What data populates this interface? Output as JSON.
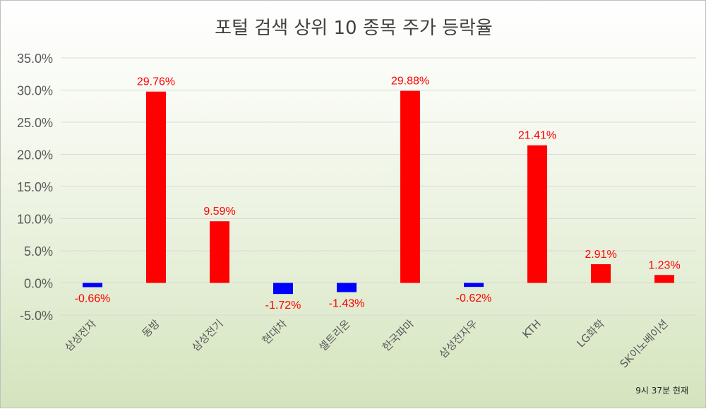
{
  "chart_data": {
    "type": "bar",
    "title": "포털 검색 상위 10 종목 주가 등락율",
    "categories": [
      "삼성전자",
      "동방",
      "삼성전기",
      "현대차",
      "셀트리온",
      "한국파마",
      "삼성전자우",
      "KTH",
      "LG화학",
      "SK이노베이션"
    ],
    "values": [
      -0.66,
      29.76,
      9.59,
      -1.72,
      -1.43,
      29.88,
      -0.62,
      21.41,
      2.91,
      1.23
    ],
    "data_labels": [
      "-0.66%",
      "29.76%",
      "9.59%",
      "-1.72%",
      "-1.43%",
      "29.88%",
      "-0.62%",
      "21.41%",
      "2.91%",
      "1.23%"
    ],
    "y_ticks": [
      35,
      30,
      25,
      20,
      15,
      10,
      5,
      0,
      -5
    ],
    "y_tick_labels": [
      "35.0%",
      "30.0%",
      "25.0%",
      "20.0%",
      "15.0%",
      "10.0%",
      "5.0%",
      "0.0%",
      "-5.0%"
    ],
    "ylim": [
      -5,
      35
    ],
    "grid": true,
    "colors": {
      "positive": "#ff0000",
      "negative": "#0000ff",
      "label": "#ff0000",
      "grid": "#d9d9d9",
      "axis_text": "#595959"
    }
  },
  "note": "9시 37분 현재"
}
